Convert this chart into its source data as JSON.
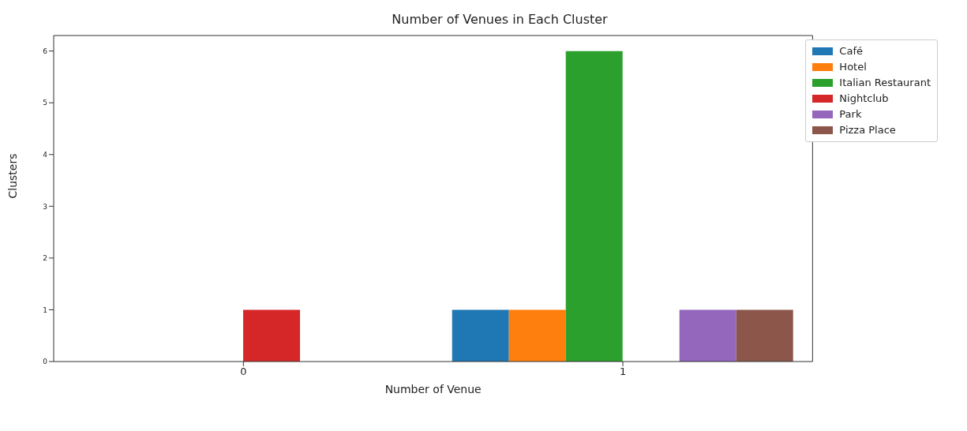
{
  "chart_data": {
    "type": "bar",
    "title": "Number of Venues in Each Cluster",
    "xlabel": "Number of Venue",
    "ylabel": "Clusters",
    "categories": [
      "0",
      "1"
    ],
    "series": [
      {
        "name": "Café",
        "color": "#1f77b4",
        "values": [
          null,
          1
        ]
      },
      {
        "name": "Hotel",
        "color": "#ff7f0e",
        "values": [
          null,
          1
        ]
      },
      {
        "name": "Italian Restaurant",
        "color": "#2ca02c",
        "values": [
          null,
          6
        ]
      },
      {
        "name": "Nightclub",
        "color": "#d62728",
        "values": [
          1,
          null
        ]
      },
      {
        "name": "Park",
        "color": "#9467bd",
        "values": [
          null,
          1
        ]
      },
      {
        "name": "Pizza Place",
        "color": "#8c564b",
        "values": [
          null,
          1
        ]
      }
    ],
    "ylim": [
      0,
      6.3
    ],
    "yticks": [
      0,
      1,
      2,
      3,
      4,
      5,
      6
    ],
    "grid": false,
    "legend": "top right"
  }
}
